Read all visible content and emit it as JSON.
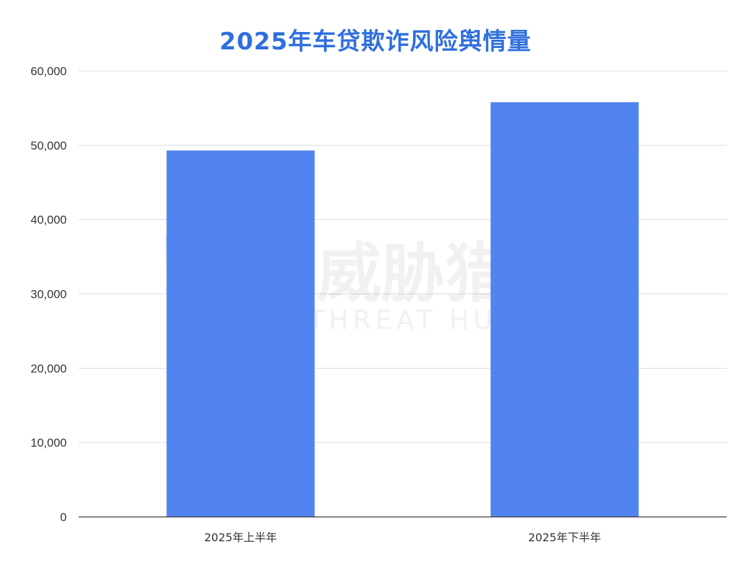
{
  "chart_data": {
    "type": "bar",
    "title": "2025年车贷欺诈风险舆情量",
    "categories": [
      "2025年上半年",
      "2025年下半年"
    ],
    "values": [
      49300,
      55800
    ],
    "ylim": [
      0,
      60000
    ],
    "yticks": [
      0,
      10000,
      20000,
      30000,
      40000,
      50000,
      60000
    ],
    "ytick_labels": [
      "0",
      "10,000",
      "20,000",
      "30,000",
      "40,000",
      "50,000",
      "60,000"
    ],
    "grid": true,
    "legend": "none",
    "bar_color": "#5284ef",
    "title_color": "#2f6fde"
  },
  "watermark": {
    "brand_cn": "威胁猎人",
    "brand_en": "THREAT HUNTER"
  }
}
